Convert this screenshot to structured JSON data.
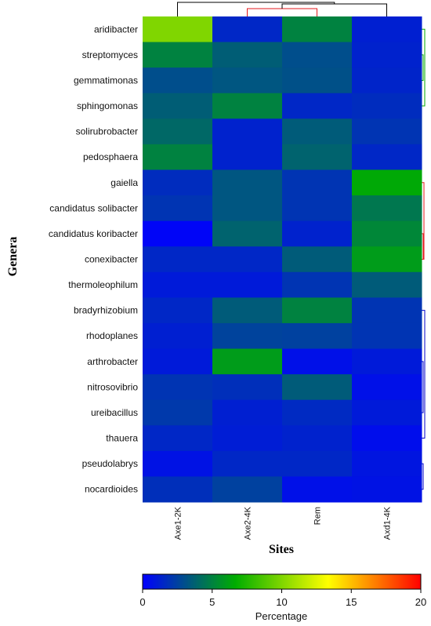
{
  "chart_data": {
    "type": "heatmap",
    "xlabel": "Sites",
    "ylabel": "Genera",
    "columns": [
      "Axe1-2K",
      "Axe2-4K",
      "Rem",
      "Axd1-4K"
    ],
    "rows": [
      "aridibacter",
      "streptomyces",
      "gemmatimonas",
      "sphingomonas",
      "solirubrobacter",
      "pedosphaera",
      "gaiella",
      "candidatus solibacter",
      "candidatus koribacter",
      "conexibacter",
      "thermoleophilum",
      "bradyrhizobium",
      "rhodoplanes",
      "arthrobacter",
      "nitrosovibrio",
      "ureibacillus",
      "thauera",
      "pseudolabrys",
      "nocardioides"
    ],
    "values": [
      [
        10.0,
        1.5,
        5.0,
        1.2
      ],
      [
        5.0,
        3.6,
        3.0,
        1.3
      ],
      [
        3.0,
        3.3,
        3.1,
        1.4
      ],
      [
        3.6,
        5.0,
        1.5,
        1.7
      ],
      [
        4.0,
        1.3,
        3.5,
        2.0
      ],
      [
        5.0,
        1.3,
        3.8,
        1.5
      ],
      [
        1.7,
        3.3,
        2.0,
        6.5
      ],
      [
        2.0,
        3.3,
        2.0,
        4.6
      ],
      [
        0.2,
        3.8,
        1.3,
        5.2
      ],
      [
        1.5,
        1.5,
        3.5,
        6.0
      ],
      [
        1.0,
        1.0,
        2.0,
        3.5
      ],
      [
        1.5,
        3.5,
        5.0,
        2.0
      ],
      [
        1.2,
        2.6,
        2.5,
        2.0
      ],
      [
        1.0,
        6.0,
        0.6,
        1.0
      ],
      [
        2.0,
        1.8,
        3.5,
        0.6
      ],
      [
        2.2,
        1.2,
        1.6,
        1.0
      ],
      [
        1.5,
        1.1,
        1.3,
        0.5
      ],
      [
        0.7,
        1.5,
        1.5,
        0.8
      ],
      [
        1.8,
        2.5,
        0.6,
        0.7
      ]
    ],
    "colorbar": {
      "range": [
        0,
        20
      ],
      "ticks": [
        "0",
        "5",
        "10",
        "15",
        "20"
      ],
      "label": "Percentage",
      "stops": [
        "#0000ff",
        "#00ad00",
        "#ffff00",
        "#ff0000"
      ]
    },
    "dendrogram_top_colors": [
      "#000000",
      "#e31a1c"
    ],
    "dendrogram_right_colors": [
      "#00aa00",
      "#e31a1c",
      "#0000cc"
    ]
  }
}
